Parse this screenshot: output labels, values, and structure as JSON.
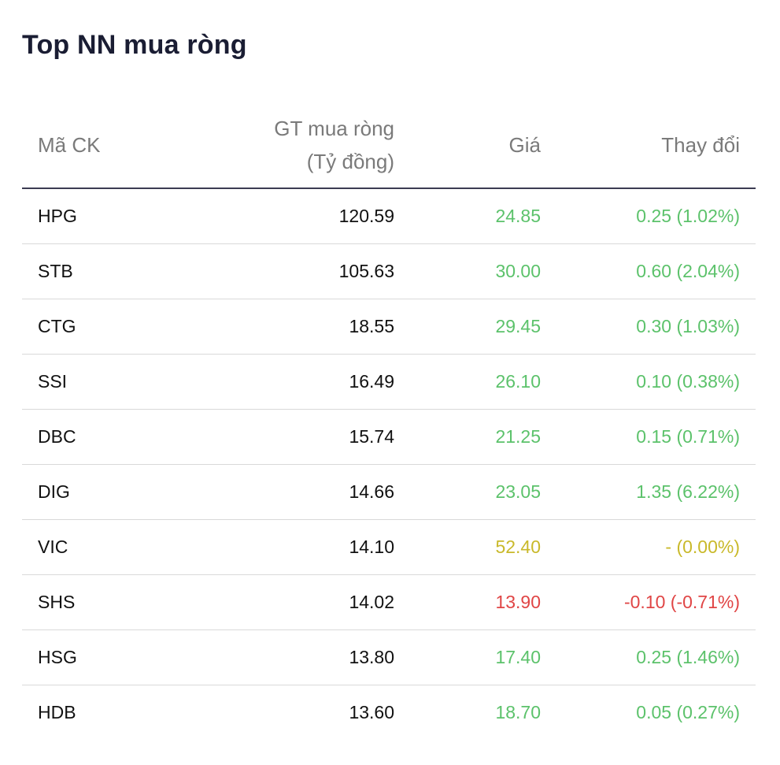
{
  "title": "Top NN mua ròng",
  "headers": {
    "symbol": "Mã CK",
    "value_line1": "GT mua ròng",
    "value_line2": "(Tỷ đồng)",
    "price": "Giá",
    "change": "Thay đổi"
  },
  "colors": {
    "up": "#5cc26b",
    "reference": "#c9b92a",
    "down": "#e04545",
    "header_text": "#7a7a7a",
    "title_text": "#1a1d33"
  },
  "rows": [
    {
      "symbol": "HPG",
      "value": "120.59",
      "price": "24.85",
      "change": "0.25 (1.02%)",
      "trend": "up"
    },
    {
      "symbol": "STB",
      "value": "105.63",
      "price": "30.00",
      "change": "0.60 (2.04%)",
      "trend": "up"
    },
    {
      "symbol": "CTG",
      "value": "18.55",
      "price": "29.45",
      "change": "0.30 (1.03%)",
      "trend": "up"
    },
    {
      "symbol": "SSI",
      "value": "16.49",
      "price": "26.10",
      "change": "0.10 (0.38%)",
      "trend": "up"
    },
    {
      "symbol": "DBC",
      "value": "15.74",
      "price": "21.25",
      "change": "0.15 (0.71%)",
      "trend": "up"
    },
    {
      "symbol": "DIG",
      "value": "14.66",
      "price": "23.05",
      "change": "1.35 (6.22%)",
      "trend": "up"
    },
    {
      "symbol": "VIC",
      "value": "14.10",
      "price": "52.40",
      "change": "- (0.00%)",
      "trend": "ref"
    },
    {
      "symbol": "SHS",
      "value": "14.02",
      "price": "13.90",
      "change": "-0.10 (-0.71%)",
      "trend": "down"
    },
    {
      "symbol": "HSG",
      "value": "13.80",
      "price": "17.40",
      "change": "0.25 (1.46%)",
      "trend": "up"
    },
    {
      "symbol": "HDB",
      "value": "13.60",
      "price": "18.70",
      "change": "0.05 (0.27%)",
      "trend": "up"
    }
  ]
}
